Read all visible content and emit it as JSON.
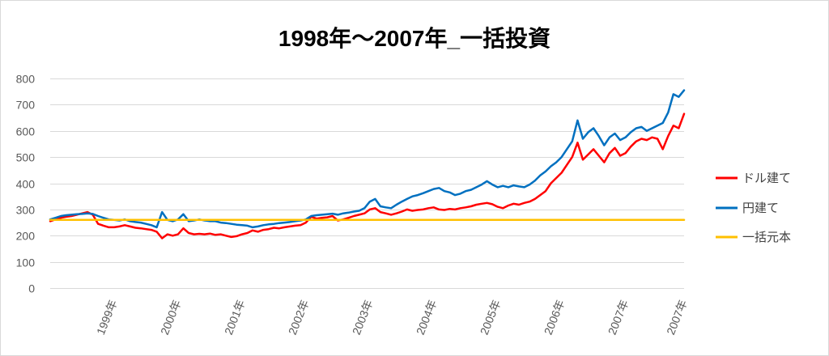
{
  "chart_data": {
    "type": "line",
    "title": "1998年～2007年_一括投資",
    "legend": "right",
    "grid": true,
    "ylim": [
      0,
      800
    ],
    "yticks": [
      0,
      100,
      200,
      300,
      400,
      500,
      600,
      700,
      800
    ],
    "xticks": [
      "1999-01",
      "2000-01",
      "2001-01",
      "2002-01",
      "2003-01",
      "2004-01",
      "2005-01",
      "2006-01",
      "2007-01",
      "2007-12"
    ],
    "xtick_labels": [
      "1999年",
      "2000年",
      "2001年",
      "2002年",
      "2003年",
      "2004年",
      "2005年",
      "2006年",
      "2007年",
      "2007年"
    ],
    "x": [
      "1998-01",
      "1998-02",
      "1998-03",
      "1998-04",
      "1998-05",
      "1998-06",
      "1998-07",
      "1998-08",
      "1998-09",
      "1998-10",
      "1998-11",
      "1998-12",
      "1999-01",
      "1999-02",
      "1999-03",
      "1999-04",
      "1999-05",
      "1999-06",
      "1999-07",
      "1999-08",
      "1999-09",
      "1999-10",
      "1999-11",
      "1999-12",
      "2000-01",
      "2000-02",
      "2000-03",
      "2000-04",
      "2000-05",
      "2000-06",
      "2000-07",
      "2000-08",
      "2000-09",
      "2000-10",
      "2000-11",
      "2000-12",
      "2001-01",
      "2001-02",
      "2001-03",
      "2001-04",
      "2001-05",
      "2001-06",
      "2001-07",
      "2001-08",
      "2001-09",
      "2001-10",
      "2001-11",
      "2001-12",
      "2002-01",
      "2002-02",
      "2002-03",
      "2002-04",
      "2002-05",
      "2002-06",
      "2002-07",
      "2002-08",
      "2002-09",
      "2002-10",
      "2002-11",
      "2002-12",
      "2003-01",
      "2003-02",
      "2003-03",
      "2003-04",
      "2003-05",
      "2003-06",
      "2003-07",
      "2003-08",
      "2003-09",
      "2003-10",
      "2003-11",
      "2003-12",
      "2004-01",
      "2004-02",
      "2004-03",
      "2004-04",
      "2004-05",
      "2004-06",
      "2004-07",
      "2004-08",
      "2004-09",
      "2004-10",
      "2004-11",
      "2004-12",
      "2005-01",
      "2005-02",
      "2005-03",
      "2005-04",
      "2005-05",
      "2005-06",
      "2005-07",
      "2005-08",
      "2005-09",
      "2005-10",
      "2005-11",
      "2005-12",
      "2006-01",
      "2006-02",
      "2006-03",
      "2006-04",
      "2006-05",
      "2006-06",
      "2006-07",
      "2006-08",
      "2006-09",
      "2006-10",
      "2006-11",
      "2006-12",
      "2007-01",
      "2007-02",
      "2007-03",
      "2007-04",
      "2007-05",
      "2007-06",
      "2007-07",
      "2007-08",
      "2007-09",
      "2007-10",
      "2007-11",
      "2007-12"
    ],
    "series": [
      {
        "name": "ドル建て",
        "color": "#FF0000",
        "values": [
          255,
          262,
          268,
          272,
          275,
          280,
          285,
          290,
          280,
          245,
          238,
          232,
          232,
          235,
          240,
          235,
          230,
          228,
          225,
          222,
          215,
          190,
          205,
          200,
          205,
          228,
          210,
          205,
          207,
          205,
          208,
          203,
          205,
          200,
          195,
          198,
          205,
          210,
          220,
          215,
          222,
          225,
          230,
          228,
          232,
          235,
          238,
          240,
          250,
          272,
          265,
          268,
          270,
          275,
          258,
          262,
          268,
          275,
          280,
          285,
          300,
          305,
          290,
          285,
          280,
          285,
          292,
          300,
          295,
          298,
          300,
          305,
          308,
          300,
          298,
          302,
          300,
          305,
          308,
          312,
          318,
          322,
          325,
          320,
          310,
          305,
          315,
          322,
          318,
          325,
          330,
          340,
          355,
          370,
          400,
          420,
          440,
          470,
          500,
          555,
          490,
          510,
          530,
          505,
          480,
          515,
          535,
          505,
          515,
          540,
          560,
          570,
          565,
          575,
          570,
          530,
          580,
          620,
          610,
          665
        ]
      },
      {
        "name": "円建て",
        "color": "#0070C0",
        "values": [
          262,
          268,
          275,
          278,
          280,
          282,
          283,
          285,
          283,
          275,
          268,
          262,
          260,
          258,
          262,
          255,
          252,
          250,
          245,
          240,
          232,
          290,
          260,
          255,
          262,
          282,
          255,
          258,
          262,
          258,
          255,
          255,
          250,
          248,
          245,
          242,
          240,
          238,
          232,
          235,
          240,
          243,
          245,
          248,
          250,
          252,
          255,
          258,
          262,
          275,
          278,
          280,
          282,
          284,
          280,
          285,
          288,
          292,
          295,
          305,
          330,
          340,
          312,
          308,
          305,
          318,
          330,
          340,
          350,
          355,
          362,
          370,
          378,
          382,
          370,
          365,
          355,
          360,
          370,
          375,
          385,
          395,
          408,
          395,
          385,
          390,
          385,
          392,
          388,
          385,
          395,
          410,
          430,
          445,
          465,
          480,
          500,
          530,
          560,
          640,
          570,
          595,
          610,
          580,
          545,
          575,
          590,
          565,
          575,
          595,
          610,
          615,
          600,
          610,
          620,
          630,
          670,
          740,
          730,
          755
        ]
      },
      {
        "name": "一括元本",
        "color": "#FFC000",
        "values": [
          260,
          260,
          260,
          260,
          260,
          260,
          260,
          260,
          260,
          260,
          260,
          260,
          260,
          260,
          260,
          260,
          260,
          260,
          260,
          260,
          260,
          260,
          260,
          260,
          260,
          260,
          260,
          260,
          260,
          260,
          260,
          260,
          260,
          260,
          260,
          260,
          260,
          260,
          260,
          260,
          260,
          260,
          260,
          260,
          260,
          260,
          260,
          260,
          260,
          260,
          260,
          260,
          260,
          260,
          260,
          260,
          260,
          260,
          260,
          260,
          260,
          260,
          260,
          260,
          260,
          260,
          260,
          260,
          260,
          260,
          260,
          260,
          260,
          260,
          260,
          260,
          260,
          260,
          260,
          260,
          260,
          260,
          260,
          260,
          260,
          260,
          260,
          260,
          260,
          260,
          260,
          260,
          260,
          260,
          260,
          260,
          260,
          260,
          260,
          260,
          260,
          260,
          260,
          260,
          260,
          260,
          260,
          260,
          260,
          260,
          260,
          260,
          260,
          260,
          260,
          260,
          260,
          260,
          260,
          260
        ]
      }
    ]
  }
}
